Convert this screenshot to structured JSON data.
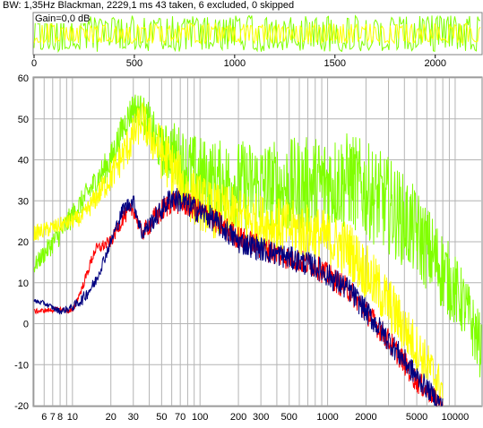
{
  "header": {
    "status": "BW: 1,35Hz Blackman, 2229,1 ms 43 taken, 6 excluded, 0 skipped",
    "gain": "Gain=0,0 dB"
  },
  "colors": {
    "background": "#ffffff",
    "frame": "#808080",
    "grid": "#b4b4b4",
    "series_yellow": "#ffff00",
    "series_green": "#80ff00",
    "series_red": "#ff0000",
    "series_navy": "#000080"
  },
  "chart_data": [
    {
      "type": "line",
      "title": "",
      "xlabel": "",
      "ylabel": "",
      "x_ticks": [
        0,
        500,
        1000,
        1500,
        2000
      ],
      "x_tick_labels": [
        "0",
        "500",
        "1000",
        "1500",
        "2000"
      ],
      "xlim": [
        0,
        2229.1
      ],
      "ylim": [
        -1,
        1
      ],
      "grid": false,
      "series": [
        {
          "color": "#80ff00",
          "envelope": [
            -0.9,
            0.9
          ]
        },
        {
          "color": "#ffff00",
          "envelope": [
            -0.5,
            0.5
          ]
        }
      ]
    },
    {
      "type": "line",
      "title": "",
      "xlabel": "",
      "ylabel": "",
      "x_scale": "log",
      "xlim": [
        5,
        16000
      ],
      "ylim": [
        -20,
        60
      ],
      "grid": true,
      "y_ticks": [
        -20,
        -10,
        0,
        10,
        20,
        30,
        40,
        50,
        60
      ],
      "y_tick_labels": [
        "-20",
        "-10",
        "0",
        "10",
        "20",
        "30",
        "40",
        "50",
        "60"
      ],
      "x_tick_labels": [
        {
          "v": 6,
          "t": "6"
        },
        {
          "v": 7,
          "t": "7"
        },
        {
          "v": 8,
          "t": "8"
        },
        {
          "v": 10,
          "t": "10"
        },
        {
          "v": 20,
          "t": "20"
        },
        {
          "v": 30,
          "t": "30"
        },
        {
          "v": 50,
          "t": "50"
        },
        {
          "v": 70,
          "t": "70"
        },
        {
          "v": 100,
          "t": "100"
        },
        {
          "v": 200,
          "t": "200"
        },
        {
          "v": 300,
          "t": "300"
        },
        {
          "v": 500,
          "t": "500"
        },
        {
          "v": 1000,
          "t": "1000"
        },
        {
          "v": 2000,
          "t": "2000"
        },
        {
          "v": 5000,
          "t": "5000"
        },
        {
          "v": 10000,
          "t": "10000"
        }
      ],
      "series": [
        {
          "color": "#80ff00",
          "x": [
            5,
            8,
            12,
            20,
            25,
            30,
            35,
            40,
            50,
            60,
            80,
            120,
            200,
            400,
            800,
            1500,
            3000,
            5000,
            8000,
            12000,
            16000
          ],
          "y": [
            14,
            22,
            30,
            40,
            48,
            53,
            52,
            48,
            42,
            42,
            38,
            35,
            34,
            33,
            34,
            35,
            29,
            22,
            13,
            4,
            -6
          ],
          "spread": [
            2,
            3,
            3,
            4,
            4,
            4,
            4,
            6,
            6,
            8,
            9,
            10,
            11,
            12,
            12,
            12,
            12,
            11,
            10,
            8,
            8
          ]
        },
        {
          "color": "#ffff00",
          "x": [
            5,
            8,
            12,
            20,
            28,
            35,
            40,
            50,
            60,
            80,
            120,
            200,
            400,
            800,
            1500,
            3000,
            5000,
            8000
          ],
          "y": [
            22,
            24,
            26,
            36,
            44,
            50,
            46,
            42,
            38,
            32,
            28,
            26,
            24,
            22,
            18,
            5,
            -6,
            -16
          ],
          "spread": [
            2,
            2,
            2,
            4,
            5,
            5,
            5,
            7,
            7,
            7,
            7,
            7,
            7,
            7,
            7,
            7,
            6,
            5
          ]
        },
        {
          "color": "#ff0000",
          "x": [
            5,
            8,
            10,
            12,
            15,
            20,
            25,
            30,
            35,
            45,
            60,
            80,
            120,
            200,
            400,
            800,
            1500,
            3000,
            5000,
            8000
          ],
          "y": [
            3,
            3.5,
            3,
            9,
            18,
            20,
            26,
            28,
            22,
            26,
            30,
            29,
            26,
            21,
            17,
            14,
            8,
            -4,
            -14,
            -20
          ],
          "spread": [
            0.6,
            0.6,
            0.8,
            1,
            1.5,
            1.5,
            2,
            2,
            2,
            3,
            3,
            3,
            3,
            3,
            3,
            3,
            3,
            3,
            3,
            2
          ]
        },
        {
          "color": "#000080",
          "x": [
            5,
            6,
            8,
            10,
            12,
            15,
            20,
            25,
            30,
            35,
            45,
            60,
            80,
            120,
            200,
            400,
            800,
            1500,
            3000,
            5000,
            8000
          ],
          "y": [
            5.5,
            5,
            3,
            4,
            6,
            10,
            20,
            28,
            30,
            22,
            26,
            31,
            29,
            26,
            20,
            17,
            14,
            8,
            -4,
            -13,
            -20
          ],
          "spread": [
            0.6,
            0.6,
            0.8,
            1,
            1.5,
            1.5,
            1.5,
            2,
            2,
            2,
            2.5,
            3,
            3,
            3,
            3,
            3,
            3,
            3,
            3,
            3,
            2
          ]
        }
      ]
    }
  ]
}
